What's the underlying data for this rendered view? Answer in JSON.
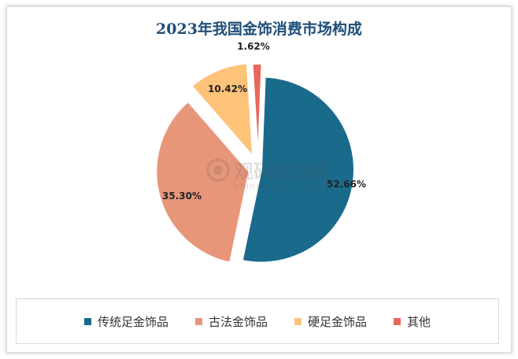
{
  "chart_data": {
    "type": "pie",
    "title": "2023年我国金饰消费市场构成",
    "categories": [
      "传统足金饰品",
      "古法金饰品",
      "硬足金饰品",
      "其他"
    ],
    "values": [
      52.66,
      35.3,
      10.42,
      1.62
    ],
    "value_labels": [
      "52.66%",
      "35.30%",
      "10.42%",
      "1.62%"
    ],
    "colors": [
      "#1a6a8c",
      "#e8967a",
      "#fdc379",
      "#e8675a"
    ],
    "exploded": true,
    "legend_position": "bottom"
  },
  "watermark": {
    "text": "观研报告网",
    "url": "chinabaogao.com"
  }
}
